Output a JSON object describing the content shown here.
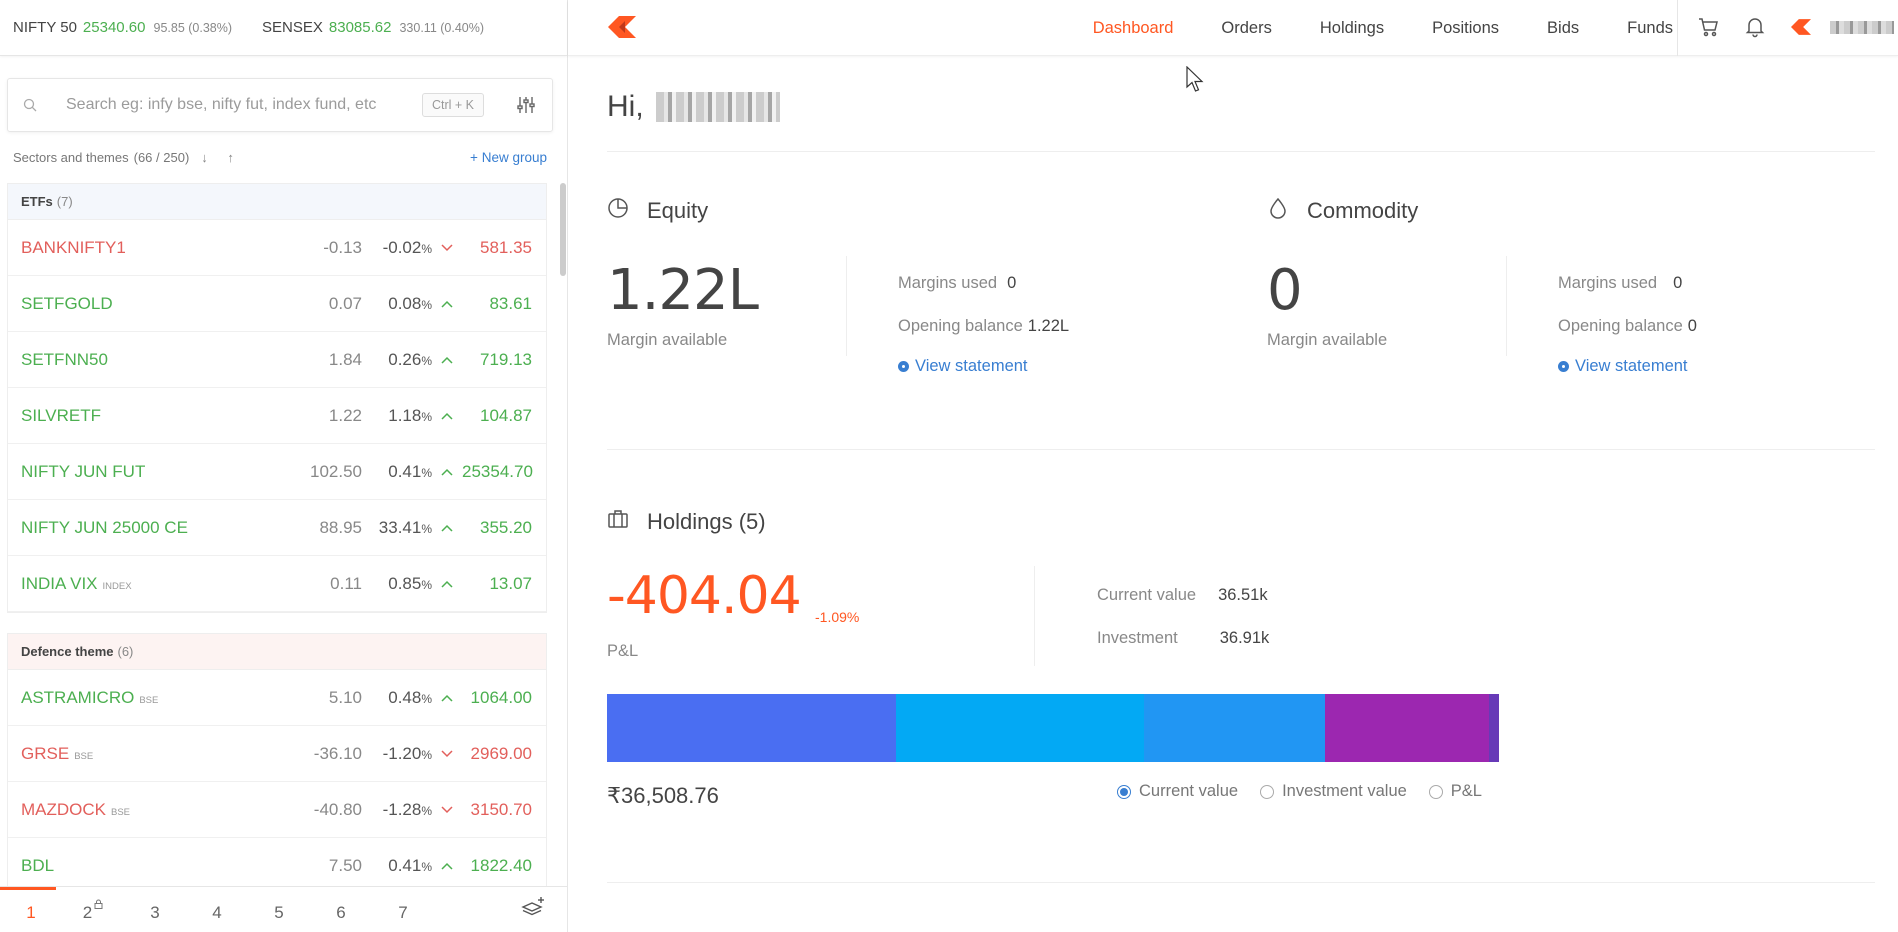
{
  "indices": [
    {
      "name": "NIFTY 50",
      "value": "25340.60",
      "change": "95.85 (0.38%)"
    },
    {
      "name": "SENSEX",
      "value": "83085.62",
      "change": "330.11 (0.40%)"
    }
  ],
  "search": {
    "placeholder": "Search eg: infy bse, nifty fut, index fund, etc",
    "shortcut": "Ctrl + K"
  },
  "watchlist_meta": {
    "label": "Sectors and themes",
    "count": "(66 / 250)",
    "arrows": "↓ ↑",
    "new_group": "New group"
  },
  "groups": [
    {
      "name": "ETFs",
      "count": "(7)",
      "rows": [
        {
          "symbol": "BANKNIFTY1",
          "exchange": "",
          "change": "-0.13",
          "pct": "-0.02",
          "dir": "down",
          "ltp": "581.35"
        },
        {
          "symbol": "SETFGOLD",
          "exchange": "",
          "change": "0.07",
          "pct": "0.08",
          "dir": "up",
          "ltp": "83.61"
        },
        {
          "symbol": "SETFNN50",
          "exchange": "",
          "change": "1.84",
          "pct": "0.26",
          "dir": "up",
          "ltp": "719.13"
        },
        {
          "symbol": "SILVRETF",
          "exchange": "",
          "change": "1.22",
          "pct": "1.18",
          "dir": "up",
          "ltp": "104.87"
        },
        {
          "symbol": "NIFTY JUN FUT",
          "exchange": "",
          "change": "102.50",
          "pct": "0.41",
          "dir": "up",
          "ltp": "25354.70"
        },
        {
          "symbol": "NIFTY JUN 25000 CE",
          "exchange": "",
          "change": "88.95",
          "pct": "33.41",
          "dir": "up",
          "ltp": "355.20"
        },
        {
          "symbol": "INDIA VIX",
          "exchange": "INDEX",
          "change": "0.11",
          "pct": "0.85",
          "dir": "up",
          "ltp": "13.07"
        }
      ]
    },
    {
      "name": "Defence theme",
      "count": "(6)",
      "rows": [
        {
          "symbol": "ASTRAMICRO",
          "exchange": "BSE",
          "change": "5.10",
          "pct": "0.48",
          "dir": "up",
          "ltp": "1064.00"
        },
        {
          "symbol": "GRSE",
          "exchange": "BSE",
          "change": "-36.10",
          "pct": "-1.20",
          "dir": "down",
          "ltp": "2969.00"
        },
        {
          "symbol": "MAZDOCK",
          "exchange": "BSE",
          "change": "-40.80",
          "pct": "-1.28",
          "dir": "down",
          "ltp": "3150.70"
        },
        {
          "symbol": "BDL",
          "exchange": "",
          "change": "7.50",
          "pct": "0.41",
          "dir": "up",
          "ltp": "1822.40"
        }
      ]
    }
  ],
  "pct_symbol": "%",
  "pages": [
    "1",
    "2",
    "3",
    "4",
    "5",
    "6",
    "7"
  ],
  "nav": [
    "Dashboard",
    "Orders",
    "Holdings",
    "Positions",
    "Bids",
    "Funds"
  ],
  "greeting": "Hi,",
  "equity": {
    "title": "Equity",
    "margin_available": "1.22L",
    "margin_label": "Margin available",
    "margins_used_label": "Margins used",
    "margins_used": "0",
    "opening_balance_label": "Opening balance",
    "opening_balance": "1.22L",
    "view_statement": "View statement"
  },
  "commodity": {
    "title": "Commodity",
    "margin_available": "0",
    "margin_label": "Margin available",
    "margins_used_label": "Margins used",
    "margins_used": "0",
    "opening_balance_label": "Opening balance",
    "opening_balance": "0",
    "view_statement": "View statement"
  },
  "holdings": {
    "title": "Holdings (5)",
    "pnl": "-404.04",
    "pnl_pct": "-1.09%",
    "pnl_label": "P&L",
    "current_value_label": "Current value",
    "current_value": "36.51k",
    "investment_label": "Investment",
    "investment": "36.91k",
    "total": "₹36,508.76",
    "bar_segments": [
      {
        "color": "#4a6ef2",
        "share": 0.3235
      },
      {
        "color": "#03a9f4",
        "share": 0.2777
      },
      {
        "color": "#2196f3",
        "share": 0.203
      },
      {
        "color": "#9c27b0",
        "share": 0.1843
      },
      {
        "color": "#673ab7",
        "share": 0.0115
      }
    ],
    "radio_options": [
      "Current value",
      "Investment value",
      "P&L"
    ],
    "selected_radio": "Current value"
  },
  "colors": {
    "accent": "#ff5722",
    "up": "#4caf50",
    "down": "#e25f5b",
    "link": "#387ed1"
  }
}
